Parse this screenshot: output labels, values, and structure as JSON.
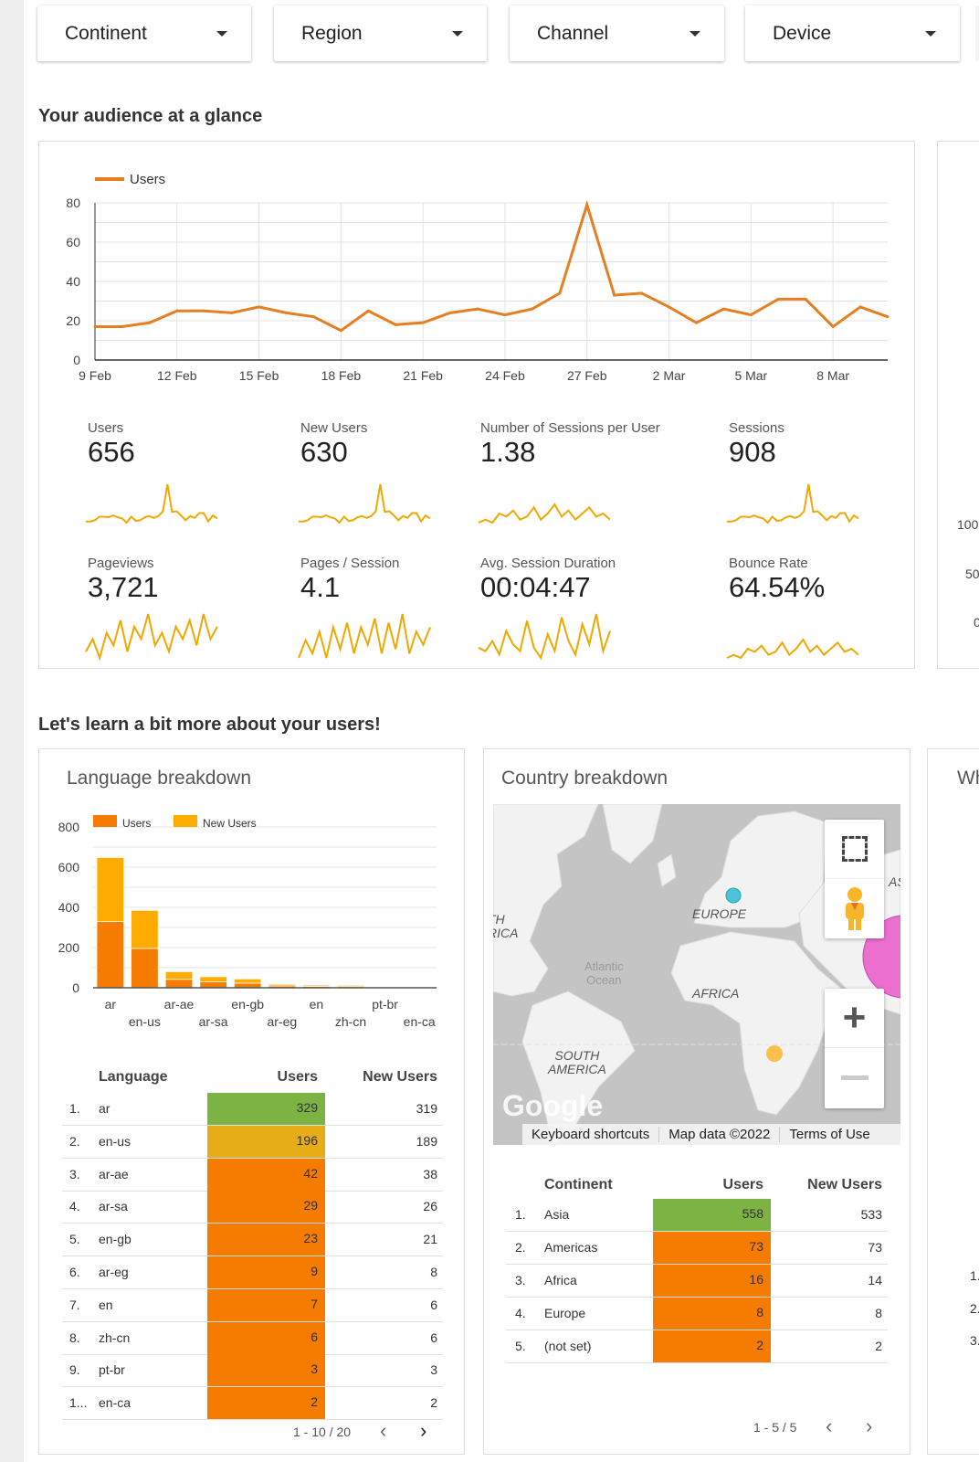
{
  "filters": [
    {
      "label": "Continent"
    },
    {
      "label": "Region"
    },
    {
      "label": "Channel"
    },
    {
      "label": "Device"
    }
  ],
  "sections": {
    "glance_title": "Your audience at a glance",
    "learn_title": "Let's learn a bit more about your users!"
  },
  "line_chart": {
    "type": "line",
    "legend": "Users",
    "color": "#e67e22",
    "ylim": [
      0,
      80
    ],
    "y_ticks": [
      "0",
      "20",
      "40",
      "60",
      "80"
    ],
    "x_ticks": [
      "9 Feb",
      "12 Feb",
      "15 Feb",
      "18 Feb",
      "21 Feb",
      "24 Feb",
      "27 Feb",
      "2 Mar",
      "5 Mar",
      "8 Mar"
    ],
    "x": [
      "9 Feb",
      "10 Feb",
      "11 Feb",
      "12 Feb",
      "13 Feb",
      "14 Feb",
      "15 Feb",
      "16 Feb",
      "17 Feb",
      "18 Feb",
      "19 Feb",
      "20 Feb",
      "21 Feb",
      "22 Feb",
      "23 Feb",
      "24 Feb",
      "25 Feb",
      "26 Feb",
      "27 Feb",
      "28 Feb",
      "1 Mar",
      "2 Mar",
      "3 Mar",
      "4 Mar",
      "5 Mar",
      "6 Mar",
      "7 Mar",
      "8 Mar",
      "9 Mar",
      "10 Mar"
    ],
    "values": [
      17,
      17,
      19,
      25,
      25,
      24,
      27,
      24,
      22,
      15,
      25,
      18,
      19,
      24,
      26,
      23,
      26,
      34,
      79,
      33,
      34,
      27,
      19,
      26,
      23,
      31,
      31,
      17,
      27,
      22
    ]
  },
  "scorecards": [
    {
      "label": "Users",
      "value": "656"
    },
    {
      "label": "New Users",
      "value": "630"
    },
    {
      "label": "Number of Sessions per User",
      "value": "1.38"
    },
    {
      "label": "Sessions",
      "value": "908"
    },
    {
      "label": "Pageviews",
      "value": "3,721"
    },
    {
      "label": "Pages / Session",
      "value": "4.1"
    },
    {
      "label": "Avg. Session Duration",
      "value": "00:04:47"
    },
    {
      "label": "Bounce Rate",
      "value": "64.54%"
    }
  ],
  "side_card": {
    "y_ticks": [
      "100",
      "50",
      "0"
    ]
  },
  "language": {
    "title": "Language breakdown",
    "chart_data": {
      "type": "bar",
      "stacked": true,
      "ylim": [
        0,
        800
      ],
      "y_ticks": [
        "0",
        "200",
        "400",
        "600",
        "800"
      ],
      "categories": [
        "ar",
        "en-us",
        "ar-ae",
        "ar-sa",
        "en-gb",
        "ar-eg",
        "en",
        "zh-cn",
        "pt-br",
        "en-ca"
      ],
      "series": [
        {
          "name": "Users",
          "color": "#f57c00",
          "values": [
            329,
            196,
            42,
            29,
            23,
            9,
            7,
            6,
            3,
            2
          ]
        },
        {
          "name": "New Users",
          "color": "#ffab00",
          "values": [
            319,
            189,
            38,
            26,
            21,
            8,
            6,
            6,
            3,
            2
          ]
        }
      ]
    },
    "table": {
      "headers": [
        "Language",
        "Users",
        "New Users"
      ],
      "rows": [
        {
          "n": "1.",
          "name": "ar",
          "users": "329",
          "new": "319",
          "color": "#7cb342"
        },
        {
          "n": "2.",
          "name": "en-us",
          "users": "196",
          "new": "189",
          "color": "#e6ad18"
        },
        {
          "n": "3.",
          "name": "ar-ae",
          "users": "42",
          "new": "38",
          "color": "#f57c00"
        },
        {
          "n": "4.",
          "name": "ar-sa",
          "users": "29",
          "new": "26",
          "color": "#f57c00"
        },
        {
          "n": "5.",
          "name": "en-gb",
          "users": "23",
          "new": "21",
          "color": "#f57c00"
        },
        {
          "n": "6.",
          "name": "ar-eg",
          "users": "9",
          "new": "8",
          "color": "#f57c00"
        },
        {
          "n": "7.",
          "name": "en",
          "users": "7",
          "new": "6",
          "color": "#f57c00"
        },
        {
          "n": "8.",
          "name": "zh-cn",
          "users": "6",
          "new": "6",
          "color": "#f57c00"
        },
        {
          "n": "9.",
          "name": "pt-br",
          "users": "3",
          "new": "3",
          "color": "#f57c00"
        },
        {
          "n": "1...",
          "name": "en-ca",
          "users": "2",
          "new": "2",
          "color": "#f57c00"
        }
      ],
      "pager": "1 - 10 / 20"
    }
  },
  "country": {
    "title": "Country breakdown",
    "map": {
      "labels": {
        "europe": "EUROPE",
        "africa": "AFRICA",
        "south_america": "SOUTH\nAMERICA",
        "ocean": "Atlantic\nOcean",
        "north_america": "TH\nRICA",
        "asia": "AS"
      },
      "attribution": {
        "logo": "Google",
        "shortcuts": "Keyboard shortcuts",
        "data": "Map data ©2022",
        "terms": "Terms of Use"
      }
    },
    "table": {
      "headers": [
        "Continent",
        "Users",
        "New Users"
      ],
      "rows": [
        {
          "n": "1.",
          "name": "Asia",
          "users": "558",
          "new": "533",
          "color": "#7cb342"
        },
        {
          "n": "2.",
          "name": "Americas",
          "users": "73",
          "new": "73",
          "color": "#f57c00"
        },
        {
          "n": "3.",
          "name": "Africa",
          "users": "16",
          "new": "14",
          "color": "#f57c00"
        },
        {
          "n": "4.",
          "name": "Europe",
          "users": "8",
          "new": "8",
          "color": "#f57c00"
        },
        {
          "n": "5.",
          "name": "(not set)",
          "users": "2",
          "new": "2",
          "color": "#f57c00"
        }
      ],
      "pager": "1 - 5 / 5"
    }
  },
  "third_card": {
    "title_fragment": "Wh",
    "rows": [
      "1.",
      "2.",
      "3."
    ]
  }
}
